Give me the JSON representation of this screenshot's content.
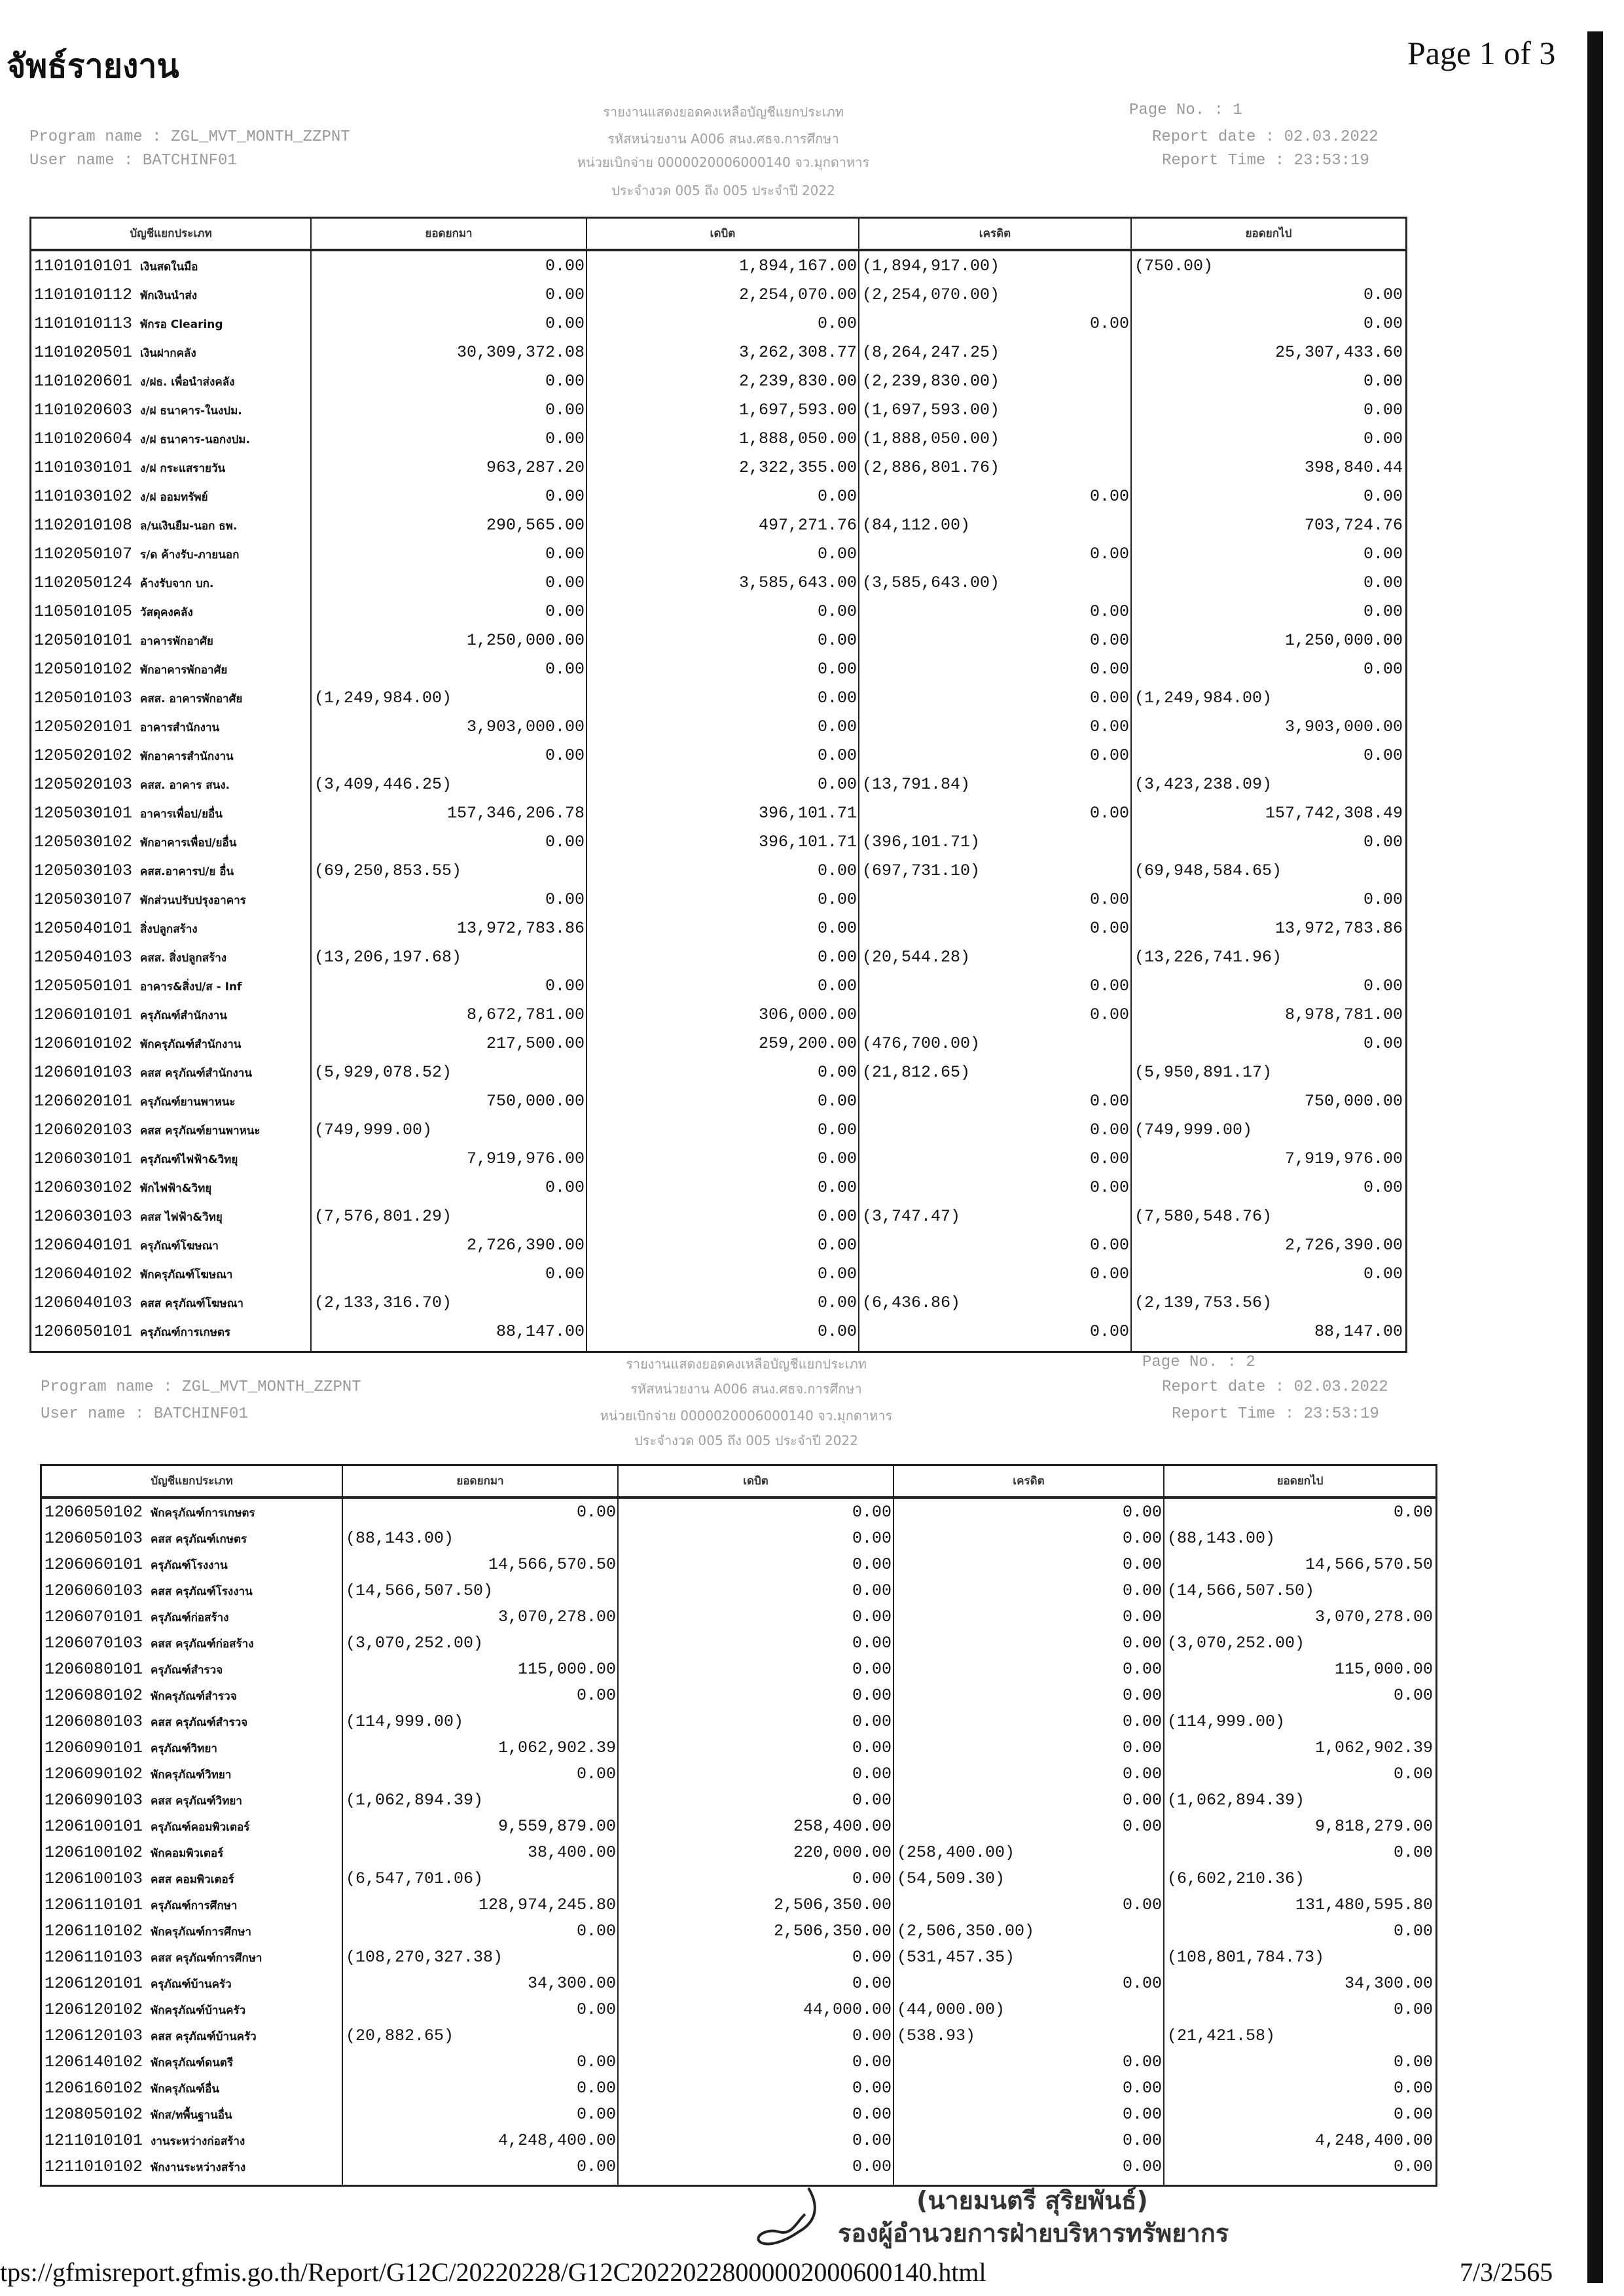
{
  "print_header": {
    "title": "จัพธ์รายงาน",
    "page_of": "Page 1 of 3"
  },
  "columns": [
    "บัญชีแยกประเภท",
    "ยอดยกมา",
    "เดบิต",
    "เครดิต",
    "ยอดยกไป"
  ],
  "reports": [
    {
      "report_title": "รายงานแสดงยอดคงเหลือบัญชีแยกประเภท",
      "page_no": "Page No.   :     1",
      "program_name": "Program name  : ZGL_MVT_MONTH_ZZPNT",
      "user_name": "User name     : BATCHINF01",
      "dept": "รหัสหน่วยงาน A006 สนง.ศธจ.การศึกษา",
      "disb": "หน่วยเบิกจ่าย 0000020006000140 จว.มุกดาหาร",
      "period": "ประจำงวด 005 ถึง 005 ประจำปี 2022",
      "report_date": "Report date  : 02.03.2022",
      "report_time": "Report Time  : 23:53:19",
      "rows": [
        [
          "1101010101",
          "เงินสดในมือ",
          "0.00",
          "1,894,167.00",
          "(1,894,917.00)",
          "(750.00)"
        ],
        [
          "1101010112",
          "พักเงินนำส่ง",
          "0.00",
          "2,254,070.00",
          "(2,254,070.00)",
          "0.00"
        ],
        [
          "1101010113",
          "พักรอ Clearing",
          "0.00",
          "0.00",
          "0.00",
          "0.00"
        ],
        [
          "1101020501",
          "เงินฝากคลัง",
          "30,309,372.08",
          "3,262,308.77",
          "(8,264,247.25)",
          "25,307,433.60"
        ],
        [
          "1101020601",
          "ง/ฝธ. เพื่อนำส่งคลัง",
          "0.00",
          "2,239,830.00",
          "(2,239,830.00)",
          "0.00"
        ],
        [
          "1101020603",
          "ง/ฝ ธนาคาร-ในงปม.",
          "0.00",
          "1,697,593.00",
          "(1,697,593.00)",
          "0.00"
        ],
        [
          "1101020604",
          "ง/ฝ ธนาคาร-นอกงปม.",
          "0.00",
          "1,888,050.00",
          "(1,888,050.00)",
          "0.00"
        ],
        [
          "1101030101",
          "ง/ฝ กระแสรายวัน",
          "963,287.20",
          "2,322,355.00",
          "(2,886,801.76)",
          "398,840.44"
        ],
        [
          "1101030102",
          "ง/ฝ ออมทรัพย์",
          "0.00",
          "0.00",
          "0.00",
          "0.00"
        ],
        [
          "1102010108",
          "ล/นเงินยืม-นอก ธพ.",
          "290,565.00",
          "497,271.76",
          "(84,112.00)",
          "703,724.76"
        ],
        [
          "1102050107",
          "ร/ด ค้างรับ-ภายนอก",
          "0.00",
          "0.00",
          "0.00",
          "0.00"
        ],
        [
          "1102050124",
          "ค้างรับจาก บก.",
          "0.00",
          "3,585,643.00",
          "(3,585,643.00)",
          "0.00"
        ],
        [
          "1105010105",
          "วัสดุคงคลัง",
          "0.00",
          "0.00",
          "0.00",
          "0.00"
        ],
        [
          "1205010101",
          "อาคารพักอาศัย",
          "1,250,000.00",
          "0.00",
          "0.00",
          "1,250,000.00"
        ],
        [
          "1205010102",
          "พักอาคารพักอาศัย",
          "0.00",
          "0.00",
          "0.00",
          "0.00"
        ],
        [
          "1205010103",
          "คสส. อาคารพักอาศัย",
          "(1,249,984.00)",
          "0.00",
          "0.00",
          "(1,249,984.00)"
        ],
        [
          "1205020101",
          "อาคารสำนักงาน",
          "3,903,000.00",
          "0.00",
          "0.00",
          "3,903,000.00"
        ],
        [
          "1205020102",
          "พักอาคารสำนักงาน",
          "0.00",
          "0.00",
          "0.00",
          "0.00"
        ],
        [
          "1205020103",
          "คสส. อาคาร สนง.",
          "(3,409,446.25)",
          "0.00",
          "(13,791.84)",
          "(3,423,238.09)"
        ],
        [
          "1205030101",
          "อาคารเพื่อป/ยอื่น",
          "157,346,206.78",
          "396,101.71",
          "0.00",
          "157,742,308.49"
        ],
        [
          "1205030102",
          "พักอาคารเพื่อป/ยอื่น",
          "0.00",
          "396,101.71",
          "(396,101.71)",
          "0.00"
        ],
        [
          "1205030103",
          "คสส.อาคารป/ย อื่น",
          "(69,250,853.55)",
          "0.00",
          "(697,731.10)",
          "(69,948,584.65)"
        ],
        [
          "1205030107",
          "พักส่วนปรับปรุงอาคาร",
          "0.00",
          "0.00",
          "0.00",
          "0.00"
        ],
        [
          "1205040101",
          "สิ่งปลูกสร้าง",
          "13,972,783.86",
          "0.00",
          "0.00",
          "13,972,783.86"
        ],
        [
          "1205040103",
          "คสส. สิ่งปลูกสร้าง",
          "(13,206,197.68)",
          "0.00",
          "(20,544.28)",
          "(13,226,741.96)"
        ],
        [
          "1205050101",
          "อาคาร&สิ่งป/ส - Inf",
          "0.00",
          "0.00",
          "0.00",
          "0.00"
        ],
        [
          "1206010101",
          "ครุภัณฑ์สำนักงาน",
          "8,672,781.00",
          "306,000.00",
          "0.00",
          "8,978,781.00"
        ],
        [
          "1206010102",
          "พักครุภัณฑ์สำนักงาน",
          "217,500.00",
          "259,200.00",
          "(476,700.00)",
          "0.00"
        ],
        [
          "1206010103",
          "คสส ครุภัณฑ์สำนักงาน",
          "(5,929,078.52)",
          "0.00",
          "(21,812.65)",
          "(5,950,891.17)"
        ],
        [
          "1206020101",
          "ครุภัณฑ์ยานพาหนะ",
          "750,000.00",
          "0.00",
          "0.00",
          "750,000.00"
        ],
        [
          "1206020103",
          "คสส ครุภัณฑ์ยานพาหนะ",
          "(749,999.00)",
          "0.00",
          "0.00",
          "(749,999.00)"
        ],
        [
          "1206030101",
          "ครุภัณฑ์ไฟฟ้า&วิทยุ",
          "7,919,976.00",
          "0.00",
          "0.00",
          "7,919,976.00"
        ],
        [
          "1206030102",
          "พักไฟฟ้า&วิทยุ",
          "0.00",
          "0.00",
          "0.00",
          "0.00"
        ],
        [
          "1206030103",
          "คสส ไฟฟ้า&วิทยุ",
          "(7,576,801.29)",
          "0.00",
          "(3,747.47)",
          "(7,580,548.76)"
        ],
        [
          "1206040101",
          "ครุภัณฑ์โฆษณา",
          "2,726,390.00",
          "0.00",
          "0.00",
          "2,726,390.00"
        ],
        [
          "1206040102",
          "พักครุภัณฑ์โฆษณา",
          "0.00",
          "0.00",
          "0.00",
          "0.00"
        ],
        [
          "1206040103",
          "คสส ครุภัณฑ์โฆษณา",
          "(2,133,316.70)",
          "0.00",
          "(6,436.86)",
          "(2,139,753.56)"
        ],
        [
          "1206050101",
          "ครุภัณฑ์การเกษตร",
          "88,147.00",
          "0.00",
          "0.00",
          "88,147.00"
        ]
      ]
    },
    {
      "report_title": "รายงานแสดงยอดคงเหลือบัญชีแยกประเภท",
      "page_no": "Page No.   :     2",
      "program_name": "Program name  : ZGL_MVT_MONTH_ZZPNT",
      "user_name": "User name     : BATCHINF01",
      "dept": "รหัสหน่วยงาน A006 สนง.ศธจ.การศึกษา",
      "disb": "หน่วยเบิกจ่าย 0000020006000140 จว.มุกดาหาร",
      "period": "ประจำงวด 005 ถึง 005 ประจำปี 2022",
      "report_date": "Report date  : 02.03.2022",
      "report_time": "Report Time  : 23:53:19",
      "rows": [
        [
          "1206050102",
          "พักครุภัณฑ์การเกษตร",
          "0.00",
          "0.00",
          "0.00",
          "0.00"
        ],
        [
          "1206050103",
          "คสส ครุภัณฑ์เกษตร",
          "(88,143.00)",
          "0.00",
          "0.00",
          "(88,143.00)"
        ],
        [
          "1206060101",
          "ครุภัณฑ์โรงงาน",
          "14,566,570.50",
          "0.00",
          "0.00",
          "14,566,570.50"
        ],
        [
          "1206060103",
          "คสส ครุภัณฑ์โรงงาน",
          "(14,566,507.50)",
          "0.00",
          "0.00",
          "(14,566,507.50)"
        ],
        [
          "1206070101",
          "ครุภัณฑ์ก่อสร้าง",
          "3,070,278.00",
          "0.00",
          "0.00",
          "3,070,278.00"
        ],
        [
          "1206070103",
          "คสส ครุภัณฑ์ก่อสร้าง",
          "(3,070,252.00)",
          "0.00",
          "0.00",
          "(3,070,252.00)"
        ],
        [
          "1206080101",
          "ครุภัณฑ์สำรวจ",
          "115,000.00",
          "0.00",
          "0.00",
          "115,000.00"
        ],
        [
          "1206080102",
          "พักครุภัณฑ์สำรวจ",
          "0.00",
          "0.00",
          "0.00",
          "0.00"
        ],
        [
          "1206080103",
          "คสส ครุภัณฑ์สำรวจ",
          "(114,999.00)",
          "0.00",
          "0.00",
          "(114,999.00)"
        ],
        [
          "1206090101",
          "ครุภัณฑ์วิทยา",
          "1,062,902.39",
          "0.00",
          "0.00",
          "1,062,902.39"
        ],
        [
          "1206090102",
          "พักครุภัณฑ์วิทยา",
          "0.00",
          "0.00",
          "0.00",
          "0.00"
        ],
        [
          "1206090103",
          "คสส ครุภัณฑ์วิทยา",
          "(1,062,894.39)",
          "0.00",
          "0.00",
          "(1,062,894.39)"
        ],
        [
          "1206100101",
          "ครุภัณฑ์คอมพิวเตอร์",
          "9,559,879.00",
          "258,400.00",
          "0.00",
          "9,818,279.00"
        ],
        [
          "1206100102",
          "พักคอมพิวเตอร์",
          "38,400.00",
          "220,000.00",
          "(258,400.00)",
          "0.00"
        ],
        [
          "1206100103",
          "คสส คอมพิวเตอร์",
          "(6,547,701.06)",
          "0.00",
          "(54,509.30)",
          "(6,602,210.36)"
        ],
        [
          "1206110101",
          "ครุภัณฑ์การศึกษา",
          "128,974,245.80",
          "2,506,350.00",
          "0.00",
          "131,480,595.80"
        ],
        [
          "1206110102",
          "พักครุภัณฑ์การศึกษา",
          "0.00",
          "2,506,350.00",
          "(2,506,350.00)",
          "0.00"
        ],
        [
          "1206110103",
          "คสส ครุภัณฑ์การศึกษา",
          "(108,270,327.38)",
          "0.00",
          "(531,457.35)",
          "(108,801,784.73)"
        ],
        [
          "1206120101",
          "ครุภัณฑ์บ้านครัว",
          "34,300.00",
          "0.00",
          "0.00",
          "34,300.00"
        ],
        [
          "1206120102",
          "พักครุภัณฑ์บ้านครัว",
          "0.00",
          "44,000.00",
          "(44,000.00)",
          "0.00"
        ],
        [
          "1206120103",
          "คสส ครุภัณฑ์บ้านครัว",
          "(20,882.65)",
          "0.00",
          "(538.93)",
          "(21,421.58)"
        ],
        [
          "1206140102",
          "พักครุภัณฑ์ดนตรี",
          "0.00",
          "0.00",
          "0.00",
          "0.00"
        ],
        [
          "1206160102",
          "พักครุภัณฑ์อื่น",
          "0.00",
          "0.00",
          "0.00",
          "0.00"
        ],
        [
          "1208050102",
          "พักส/ทพื้นฐานอื่น",
          "0.00",
          "0.00",
          "0.00",
          "0.00"
        ],
        [
          "1211010101",
          "งานระหว่างก่อสร้าง",
          "4,248,400.00",
          "0.00",
          "0.00",
          "4,248,400.00"
        ],
        [
          "1211010102",
          "พักงานระหว่างสร้าง",
          "0.00",
          "0.00",
          "0.00",
          "0.00"
        ]
      ]
    }
  ],
  "signature": {
    "name": "(นายมนตรี สุริยพันธ์)",
    "position": "รองผู้อำนวยการฝ่ายบริหารทรัพยากร"
  },
  "footer": {
    "url": "tps://gfmisreport.gfmis.go.th/Report/G12C/20220228/G12C20220228000002000600140.html",
    "date": "7/3/2565"
  }
}
